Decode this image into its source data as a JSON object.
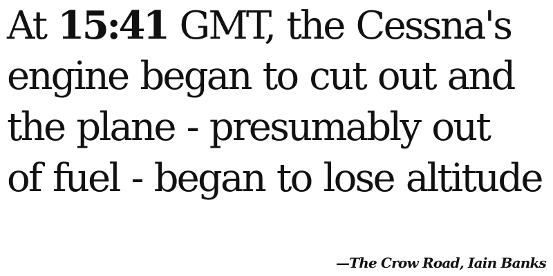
{
  "quote": {
    "line1_prefix": "At",
    "time": "15:41",
    "line1_suffix": "GMT, the Cessna's",
    "line2": "engine began to cut out and",
    "line3": "the plane - presumably out",
    "line4": "of fuel - began to lose altitude"
  },
  "attribution": {
    "text": "—The Crow Road, Iain Banks"
  },
  "colors": {
    "text": "#111111",
    "background": "#ffffff"
  }
}
